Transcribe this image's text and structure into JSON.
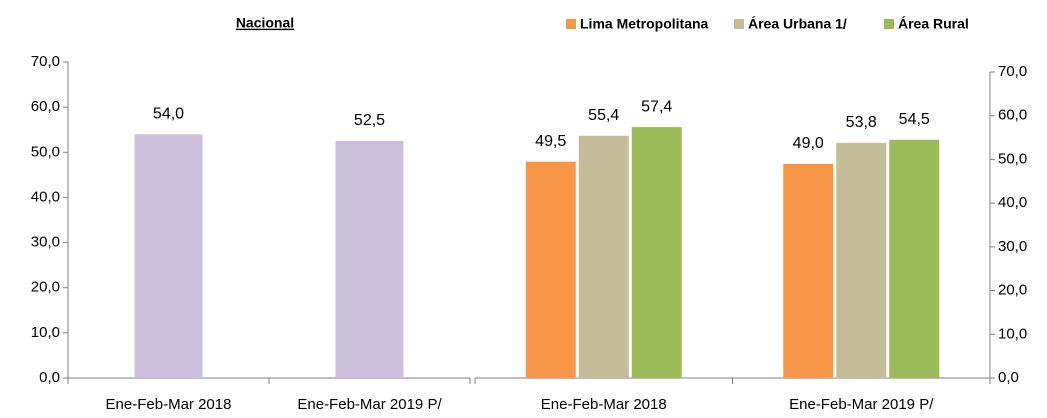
{
  "chart_data": [
    {
      "type": "bar",
      "title": "Nacional",
      "categories": [
        "Ene-Feb-Mar 2018",
        "Ene-Feb-Mar 2019 P/"
      ],
      "values": [
        54.0,
        52.5
      ],
      "value_labels": [
        "54,0",
        "52,5"
      ],
      "color": "#cbbfdc",
      "ylim": [
        0,
        70
      ],
      "yticks": [
        {
          "value": 0,
          "label": "0,0"
        },
        {
          "value": 10,
          "label": "10,0"
        },
        {
          "value": 20,
          "label": "20,0"
        },
        {
          "value": 30,
          "label": "30,0"
        },
        {
          "value": 40,
          "label": "40,0"
        },
        {
          "value": 50,
          "label": "50,0"
        },
        {
          "value": 60,
          "label": "60,0"
        },
        {
          "value": 70,
          "label": "70,0"
        }
      ]
    },
    {
      "type": "grouped_bar",
      "categories": [
        "Ene-Feb-Mar 2018",
        "Ene-Feb-Mar 2019 P/"
      ],
      "series": [
        {
          "name": "Lima Metropolitana",
          "color": "#f79646",
          "values": [
            49.5,
            49.0
          ],
          "value_labels": [
            "49,5",
            "49,0"
          ]
        },
        {
          "name": "Área Urbana 1/",
          "color": "#c4bd97",
          "values": [
            55.4,
            53.8
          ],
          "value_labels": [
            "55,4",
            "53,8"
          ]
        },
        {
          "name": "Área Rural",
          "color": "#9bbb59",
          "values": [
            57.4,
            54.5
          ],
          "value_labels": [
            "57,4",
            "54,5"
          ]
        }
      ],
      "legend": "top",
      "y_axis_side": "right",
      "ylim": [
        0,
        70
      ],
      "yticks": [
        {
          "value": 0,
          "label": "0,0"
        },
        {
          "value": 10,
          "label": "10,0"
        },
        {
          "value": 20,
          "label": "20,0"
        },
        {
          "value": 30,
          "label": "30,0"
        },
        {
          "value": 40,
          "label": "40,0"
        },
        {
          "value": 50,
          "label": "50,0"
        },
        {
          "value": 60,
          "label": "60,0"
        },
        {
          "value": 70,
          "label": "70,0"
        }
      ]
    }
  ]
}
